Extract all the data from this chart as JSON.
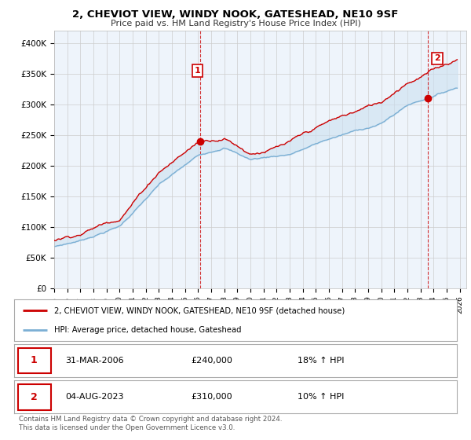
{
  "title": "2, CHEVIOT VIEW, WINDY NOOK, GATESHEAD, NE10 9SF",
  "subtitle": "Price paid vs. HM Land Registry's House Price Index (HPI)",
  "ylim": [
    0,
    420000
  ],
  "yticks": [
    0,
    50000,
    100000,
    150000,
    200000,
    250000,
    300000,
    350000,
    400000
  ],
  "ytick_labels": [
    "£0",
    "£50K",
    "£100K",
    "£150K",
    "£200K",
    "£250K",
    "£300K",
    "£350K",
    "£400K"
  ],
  "line1_color": "#cc0000",
  "line2_color": "#7bafd4",
  "fill_color": "#ddeeff",
  "marker_color": "#cc0000",
  "sale1_date": "31-MAR-2006",
  "sale1_price": "£240,000",
  "sale1_hpi": "18% ↑ HPI",
  "sale2_date": "04-AUG-2023",
  "sale2_price": "£310,000",
  "sale2_hpi": "10% ↑ HPI",
  "legend1": "2, CHEVIOT VIEW, WINDY NOOK, GATESHEAD, NE10 9SF (detached house)",
  "legend2": "HPI: Average price, detached house, Gateshead",
  "footer": "Contains HM Land Registry data © Crown copyright and database right 2024.\nThis data is licensed under the Open Government Licence v3.0.",
  "background_color": "#ffffff",
  "grid_color": "#cccccc",
  "xstart": 1995,
  "xend": 2026
}
